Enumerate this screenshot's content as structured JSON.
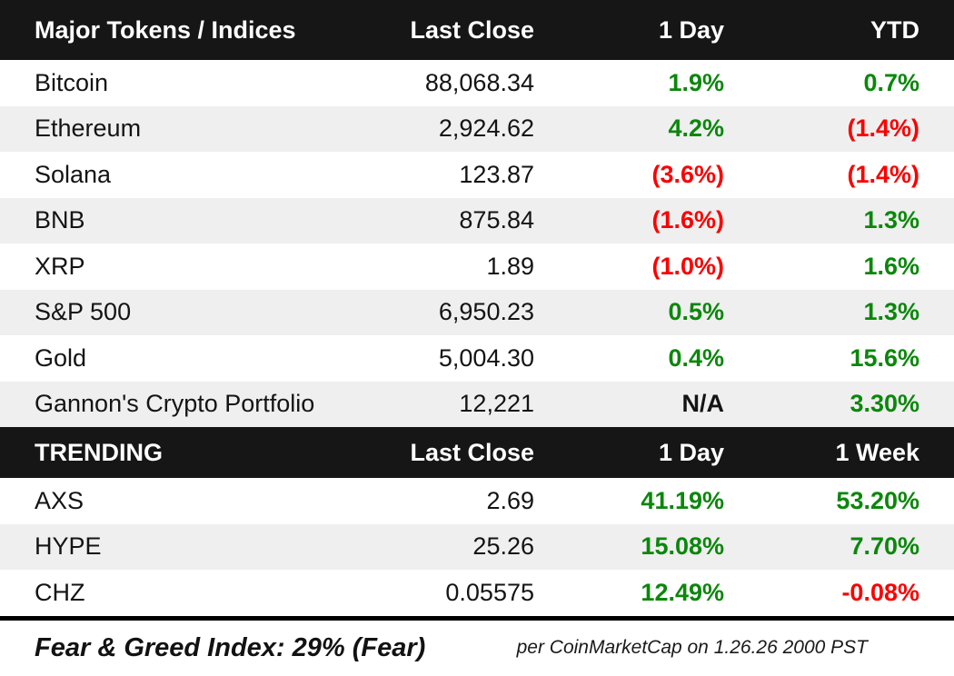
{
  "colors": {
    "header_bg": "#161616",
    "header_text": "#ffffff",
    "row_alt_bg": "#efefef",
    "positive": "#0b870b",
    "negative": "#fb0000",
    "neutral_text": "#141414",
    "separator": "#000000"
  },
  "sections": {
    "major": {
      "headers": [
        "Major Tokens / Indices",
        "Last Close",
        "1 Day",
        "YTD"
      ],
      "rows": [
        {
          "name": "Bitcoin",
          "last_close": "88,068.34",
          "one_day": "1.9%",
          "one_day_tone": "positive",
          "ytd": "0.7%",
          "ytd_tone": "positive"
        },
        {
          "name": "Ethereum",
          "last_close": "2,924.62",
          "one_day": "4.2%",
          "one_day_tone": "positive",
          "ytd": "(1.4%)",
          "ytd_tone": "negative"
        },
        {
          "name": "Solana",
          "last_close": "123.87",
          "one_day": "(3.6%)",
          "one_day_tone": "negative",
          "ytd": "(1.4%)",
          "ytd_tone": "negative"
        },
        {
          "name": "BNB",
          "last_close": "875.84",
          "one_day": "(1.6%)",
          "one_day_tone": "negative",
          "ytd": "1.3%",
          "ytd_tone": "positive"
        },
        {
          "name": "XRP",
          "last_close": "1.89",
          "one_day": "(1.0%)",
          "one_day_tone": "negative",
          "ytd": "1.6%",
          "ytd_tone": "positive"
        },
        {
          "name": "S&P 500",
          "last_close": "6,950.23",
          "one_day": "0.5%",
          "one_day_tone": "positive",
          "ytd": "1.3%",
          "ytd_tone": "positive"
        },
        {
          "name": "Gold",
          "last_close": "5,004.30",
          "one_day": "0.4%",
          "one_day_tone": "positive",
          "ytd": "15.6%",
          "ytd_tone": "positive"
        },
        {
          "name": "Gannon's Crypto Portfolio",
          "last_close": "12,221",
          "one_day": "N/A",
          "one_day_tone": "neutral",
          "ytd": "3.30%",
          "ytd_tone": "positive"
        }
      ]
    },
    "trending": {
      "headers": [
        "TRENDING",
        "Last Close",
        "1 Day",
        "1 Week"
      ],
      "rows": [
        {
          "name": "AXS",
          "last_close": "2.69",
          "one_day": "41.19%",
          "one_day_tone": "positive",
          "one_week": "53.20%",
          "one_week_tone": "positive"
        },
        {
          "name": "HYPE",
          "last_close": "25.26",
          "one_day": "15.08%",
          "one_day_tone": "positive",
          "one_week": "7.70%",
          "one_week_tone": "positive"
        },
        {
          "name": "CHZ",
          "last_close": "0.05575",
          "one_day": "12.49%",
          "one_day_tone": "positive",
          "one_week": "-0.08%",
          "one_week_tone": "negative"
        }
      ]
    }
  },
  "footer": {
    "fear_greed": "Fear & Greed Index: 29% (Fear)",
    "attribution": "per CoinMarketCap on 1.26.26 2000 PST"
  },
  "chart_data": [
    {
      "type": "table",
      "title": "Major Tokens / Indices",
      "columns": [
        "Major Tokens / Indices",
        "Last Close",
        "1 Day",
        "YTD"
      ],
      "rows": [
        [
          "Bitcoin",
          88068.34,
          "1.9%",
          "0.7%"
        ],
        [
          "Ethereum",
          2924.62,
          "4.2%",
          "(1.4%)"
        ],
        [
          "Solana",
          123.87,
          "(3.6%)",
          "(1.4%)"
        ],
        [
          "BNB",
          875.84,
          "(1.6%)",
          "1.3%"
        ],
        [
          "XRP",
          1.89,
          "(1.0%)",
          "1.6%"
        ],
        [
          "S&P 500",
          6950.23,
          "0.5%",
          "1.3%"
        ],
        [
          "Gold",
          5004.3,
          "0.4%",
          "15.6%"
        ],
        [
          "Gannon's Crypto Portfolio",
          12221,
          "N/A",
          "3.30%"
        ]
      ]
    },
    {
      "type": "table",
      "title": "TRENDING",
      "columns": [
        "TRENDING",
        "Last Close",
        "1 Day",
        "1 Week"
      ],
      "rows": [
        [
          "AXS",
          2.69,
          "41.19%",
          "53.20%"
        ],
        [
          "HYPE",
          25.26,
          "15.08%",
          "7.70%"
        ],
        [
          "CHZ",
          0.05575,
          "12.49%",
          "-0.08%"
        ]
      ]
    }
  ]
}
